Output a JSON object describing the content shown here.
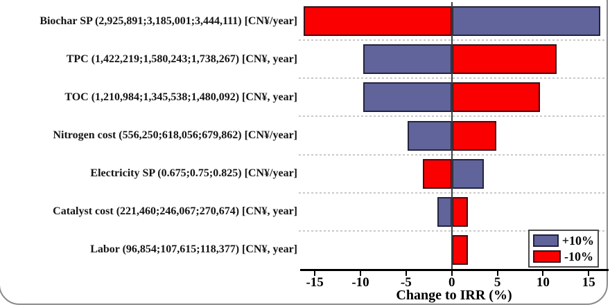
{
  "chart_data": {
    "type": "bar",
    "variant": "tornado",
    "xlabel": "Change to IRR (%)",
    "x_ticks": [
      -15,
      -10,
      -5,
      0,
      5,
      10,
      15
    ],
    "x_range": [
      -16.3,
      16.8
    ],
    "grid": "dashed-horizontal-separators",
    "legend_position": "bottom-right",
    "legend": [
      {
        "label": "+10%",
        "color": "#61649a"
      },
      {
        "label": "-10%",
        "color": "#fb0000"
      }
    ],
    "rows": [
      {
        "label": "Biochar SP (2,925,891;3,185,001;3,444,111) [CN¥/year]",
        "plus10": 16.3,
        "minus10": -16.2
      },
      {
        "label": "TPC (1,422,219;1,580,243;1,738,267) [CN¥, year]",
        "plus10": -9.7,
        "minus10": 11.5
      },
      {
        "label": "TOC (1,210,984;1,345,538;1,480,092) [CN¥, year]",
        "plus10": -9.7,
        "minus10": 9.7
      },
      {
        "label": "Nitrogen cost (556,250;618,056;679,862) [CN¥/year]",
        "plus10": -4.8,
        "minus10": 4.9
      },
      {
        "label": "Electricity SP (0.675;0.75;0.825) [CN¥/year]",
        "plus10": 3.5,
        "minus10": -3.2
      },
      {
        "label": "Catalyst cost (221,460;246,067;270,674) [CN¥, year]",
        "plus10": -1.6,
        "minus10": 1.8
      },
      {
        "label": "Labor (96,854;107,615;118,377) [CN¥, year]",
        "plus10": null,
        "minus10": 1.8
      }
    ]
  }
}
